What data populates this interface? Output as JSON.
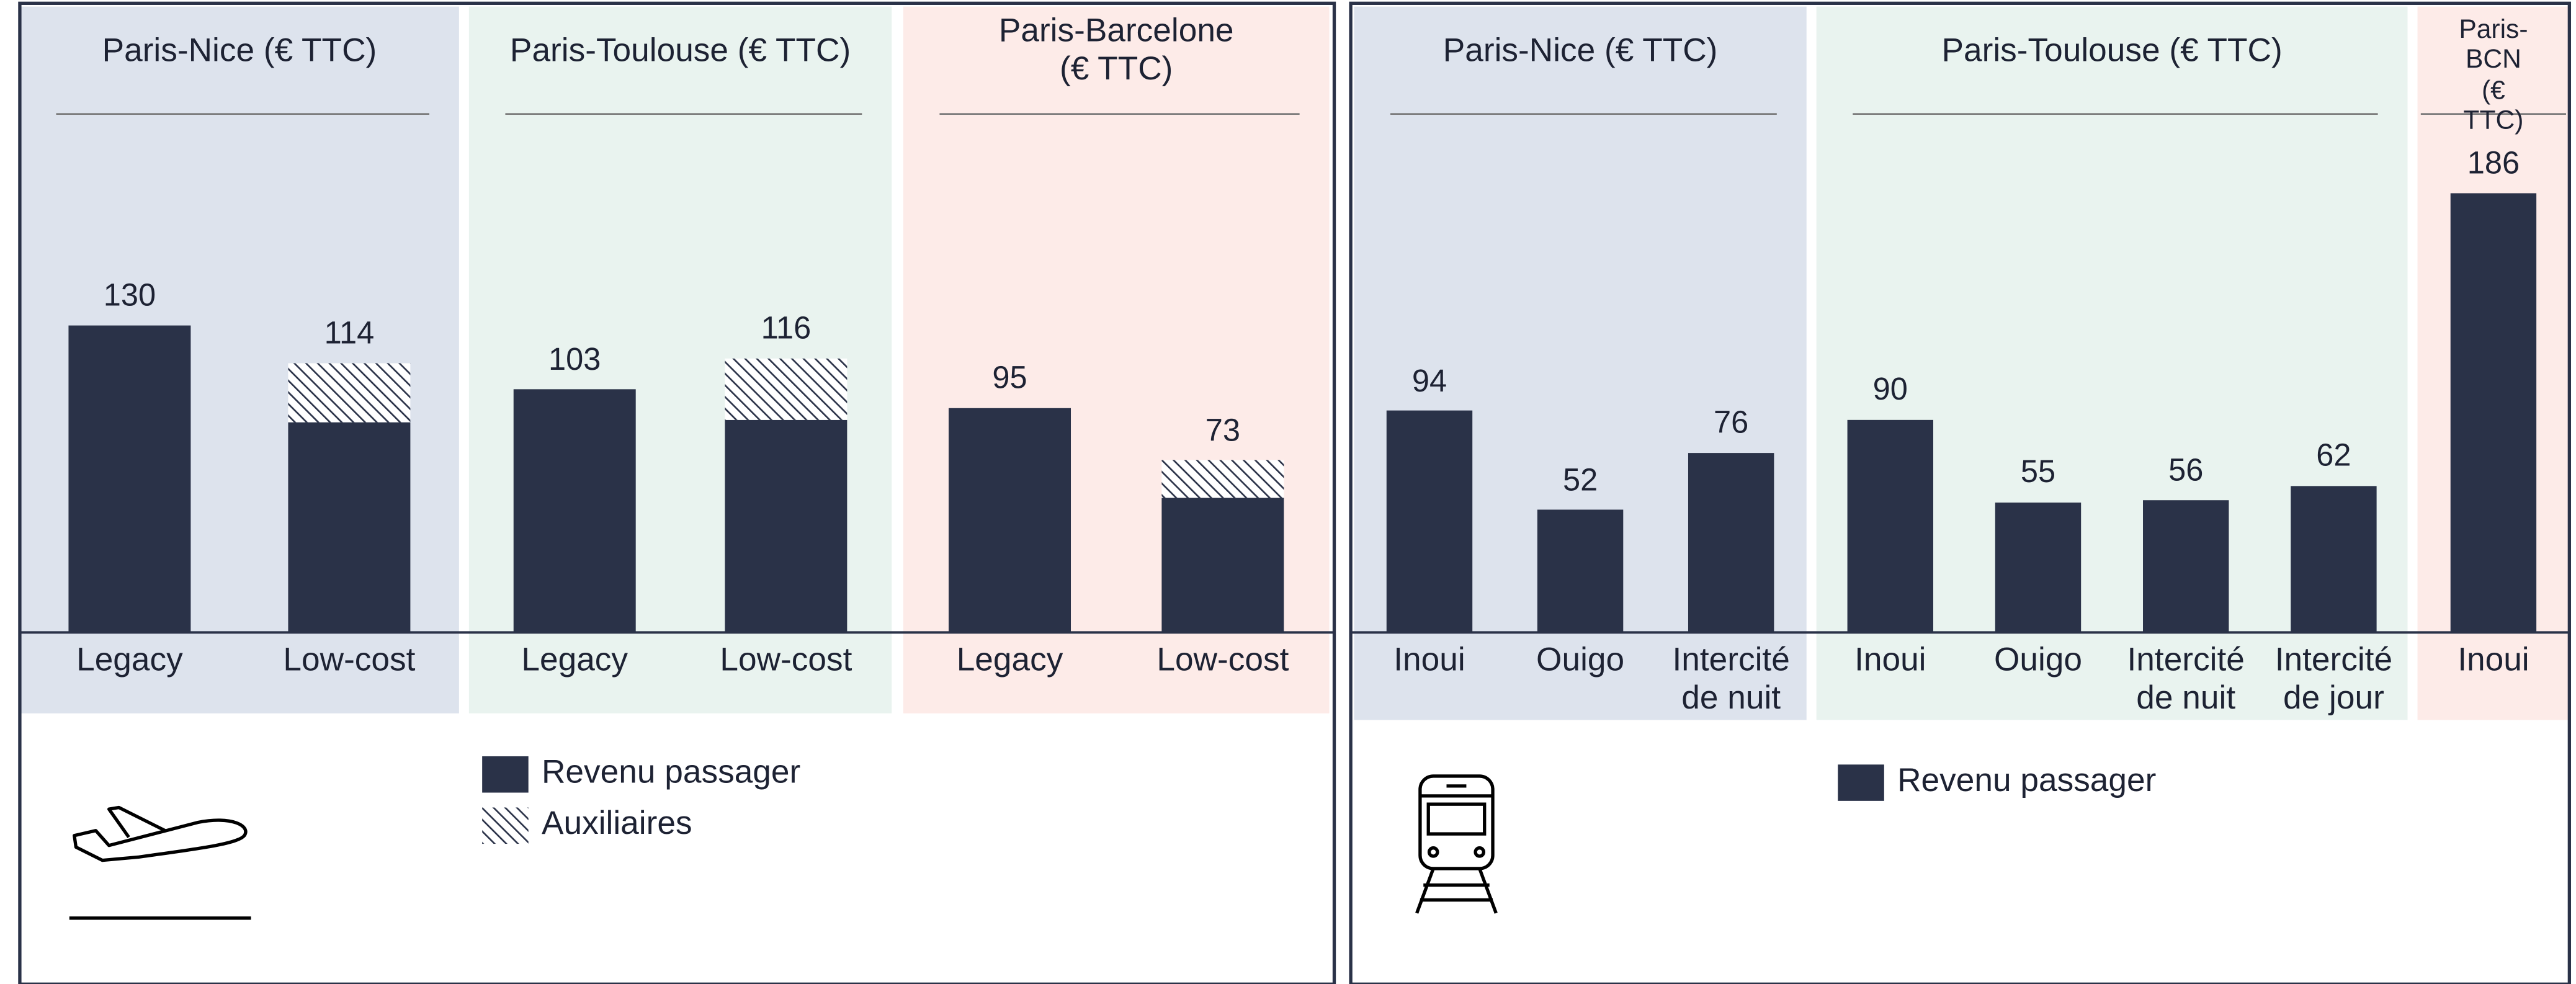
{
  "chart_data": [
    {
      "type": "bar",
      "stacked": true,
      "groups": [
        {
          "title": "Paris-Nice (€ TTC)",
          "categories": [
            "Legacy",
            "Low-cost"
          ],
          "background": "#dde3ed"
        },
        {
          "title": "Paris-Toulouse (€ TTC)",
          "categories": [
            "Legacy",
            "Low-cost"
          ],
          "background": "#e9f3ef"
        },
        {
          "title": "Paris-Barcelone\n(€ TTC)",
          "categories": [
            "Legacy",
            "Low-cost"
          ],
          "background": "#fdebe8"
        }
      ],
      "series": [
        {
          "name": "Revenu passager",
          "color": "#2a3248",
          "values": [
            130,
            89,
            103,
            90,
            95,
            57
          ]
        },
        {
          "name": "Auxiliaires",
          "color": "#2a3248",
          "pattern": "hatch",
          "values": [
            null,
            25,
            null,
            26,
            null,
            16
          ]
        }
      ],
      "totals": [
        130,
        114,
        103,
        116,
        95,
        73
      ],
      "ylim": [
        0,
        200
      ]
    },
    {
      "type": "bar",
      "groups": [
        {
          "title": "Paris-Nice (€ TTC)",
          "categories": [
            "Inoui",
            "Ouigo",
            "Intercité\nde nuit"
          ],
          "background": "#dde3ed"
        },
        {
          "title": "Paris-Toulouse (€ TTC)",
          "categories": [
            "Inoui",
            "Ouigo",
            "Intercité\nde nuit",
            "Intercité\nde jour"
          ],
          "background": "#e9f3ef"
        },
        {
          "title": "Paris-BCN\n(€ TTC)",
          "categories": [
            "Inoui"
          ],
          "background": "#fdebe8"
        }
      ],
      "series": [
        {
          "name": "Revenu passager",
          "color": "#2a3248",
          "values": [
            94,
            52,
            76,
            90,
            55,
            56,
            62,
            186
          ]
        }
      ],
      "ylim": [
        0,
        200
      ]
    }
  ]
}
